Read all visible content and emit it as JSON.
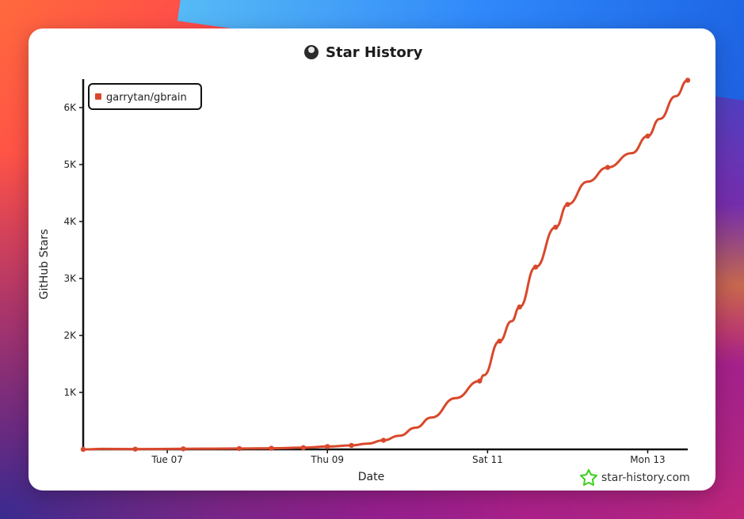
{
  "window": {
    "title": "Star History"
  },
  "watermark": {
    "text": "star-history.com",
    "icon": "star-icon",
    "icon_color": "#3ad11c"
  },
  "colors": {
    "series": "#d9482b",
    "axis": "#111111",
    "background": "#ffffff"
  },
  "chart_data": {
    "type": "line",
    "title": "Star History",
    "xlabel": "Date",
    "ylabel": "GitHub Stars",
    "x_ticks": [
      {
        "day": 7,
        "label": "Tue 07"
      },
      {
        "day": 9,
        "label": "Thu 09"
      },
      {
        "day": 11,
        "label": "Sat 11"
      },
      {
        "day": 13,
        "label": "Mon 13"
      }
    ],
    "y_ticks": [
      {
        "value": 1000,
        "label": "1K"
      },
      {
        "value": 2000,
        "label": "2K"
      },
      {
        "value": 3000,
        "label": "3K"
      },
      {
        "value": 4000,
        "label": "4K"
      },
      {
        "value": 5000,
        "label": "5K"
      },
      {
        "value": 6000,
        "label": "6K"
      }
    ],
    "xlim": [
      5.95,
      13.5
    ],
    "ylim": [
      0,
      6500
    ],
    "grid": false,
    "legend_position": "top-left",
    "series": [
      {
        "name": "garrytan/gbrain",
        "color": "#d9482b",
        "x": [
          5.95,
          6.2,
          6.6,
          7.2,
          7.9,
          8.3,
          8.7,
          9.0,
          9.3,
          9.5,
          9.7,
          9.9,
          10.1,
          10.3,
          10.6,
          10.9,
          10.95,
          11.15,
          11.3,
          11.4,
          11.6,
          11.85,
          12.0,
          12.25,
          12.5,
          12.8,
          13.0,
          13.15,
          13.35,
          13.5
        ],
        "y": [
          0,
          8,
          5,
          10,
          15,
          20,
          30,
          50,
          70,
          100,
          160,
          240,
          380,
          560,
          900,
          1200,
          1300,
          1900,
          2250,
          2500,
          3200,
          3900,
          4300,
          4700,
          4950,
          5200,
          5500,
          5800,
          6200,
          6480
        ]
      }
    ],
    "markers_x": [
      5.95,
      6.6,
      7.2,
      7.9,
      8.3,
      8.7,
      9.0,
      9.3,
      9.7,
      10.9,
      11.15,
      11.4,
      11.6,
      11.85,
      12.0,
      12.5,
      13.0,
      13.5
    ]
  }
}
